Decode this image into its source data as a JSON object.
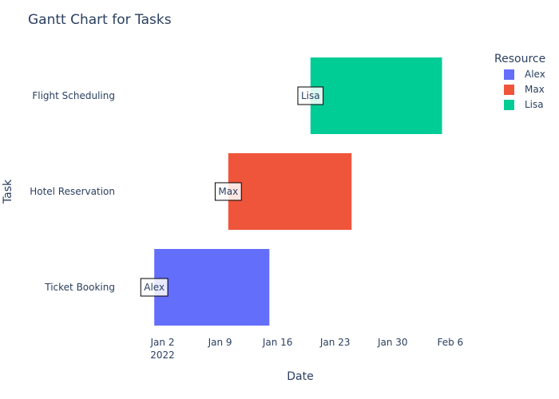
{
  "chart_data": {
    "type": "gantt",
    "title": "Gantt Chart for Tasks",
    "xlabel": "Date",
    "ylabel": "Task",
    "x_axis": {
      "type": "date",
      "range": [
        "2021-12-28",
        "2022-02-10"
      ],
      "ticks": [
        {
          "date": "2022-01-02",
          "label": "Jan 2",
          "sublabel": "2022"
        },
        {
          "date": "2022-01-09",
          "label": "Jan 9"
        },
        {
          "date": "2022-01-16",
          "label": "Jan 16"
        },
        {
          "date": "2022-01-23",
          "label": "Jan 23"
        },
        {
          "date": "2022-01-30",
          "label": "Jan 30"
        },
        {
          "date": "2022-02-06",
          "label": "Feb 6"
        }
      ]
    },
    "categories": [
      "Ticket Booking",
      "Hotel Reservation",
      "Flight Scheduling"
    ],
    "tasks": [
      {
        "task": "Ticket Booking",
        "start": "2022-01-01",
        "end": "2022-01-15",
        "resource": "Alex"
      },
      {
        "task": "Hotel Reservation",
        "start": "2022-01-10",
        "end": "2022-01-25",
        "resource": "Max"
      },
      {
        "task": "Flight Scheduling",
        "start": "2022-01-20",
        "end": "2022-02-05",
        "resource": "Lisa"
      }
    ],
    "legend": {
      "title": "Resource",
      "placement": "top-right",
      "items": [
        {
          "name": "Alex",
          "color": "#636efa"
        },
        {
          "name": "Max",
          "color": "#ef553b"
        },
        {
          "name": "Lisa",
          "color": "#00cc96"
        }
      ]
    },
    "annotations": [
      {
        "text": "Alex",
        "task": "Ticket Booking",
        "date": "2022-01-01"
      },
      {
        "text": "Max",
        "task": "Hotel Reservation",
        "date": "2022-01-10"
      },
      {
        "text": "Lisa",
        "task": "Flight Scheduling",
        "date": "2022-01-20"
      }
    ],
    "grid": false
  }
}
